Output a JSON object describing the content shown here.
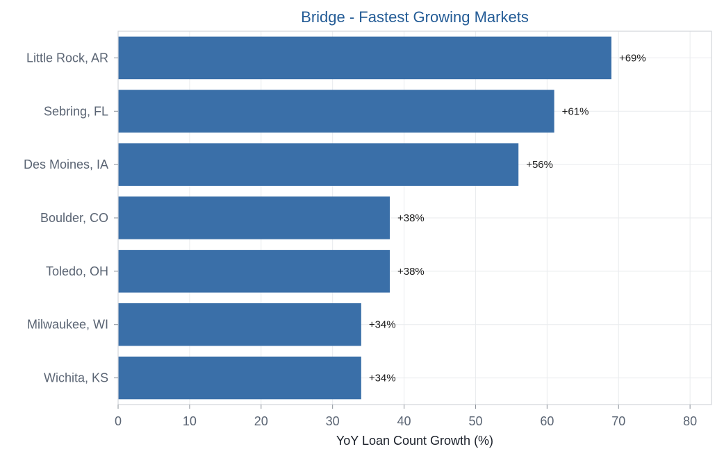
{
  "chart_data": {
    "type": "bar",
    "orientation": "horizontal",
    "title": "Bridge - Fastest Growing Markets",
    "xlabel": "YoY Loan Count Growth (%)",
    "ylabel": "",
    "categories": [
      "Little Rock, AR",
      "Sebring, FL",
      "Des Moines, IA",
      "Boulder, CO",
      "Toledo, OH",
      "Milwaukee, WI",
      "Wichita, KS"
    ],
    "values": [
      69,
      61,
      56,
      38,
      38,
      34,
      34
    ],
    "value_labels": [
      "+69%",
      "+61%",
      "+56%",
      "+38%",
      "+38%",
      "+34%",
      "+34%"
    ],
    "xlim": [
      0,
      83
    ],
    "xticks": [
      0,
      10,
      20,
      30,
      40,
      50,
      60,
      70,
      80
    ],
    "xtick_labels": [
      "0",
      "10",
      "20",
      "30",
      "40",
      "50",
      "60",
      "70",
      "80"
    ],
    "grid": true,
    "legend": "none",
    "colors": {
      "bar": "#3a6fa8",
      "title": "#245c96",
      "grid": "#e9ebee",
      "frame": "#d3d6da"
    }
  }
}
